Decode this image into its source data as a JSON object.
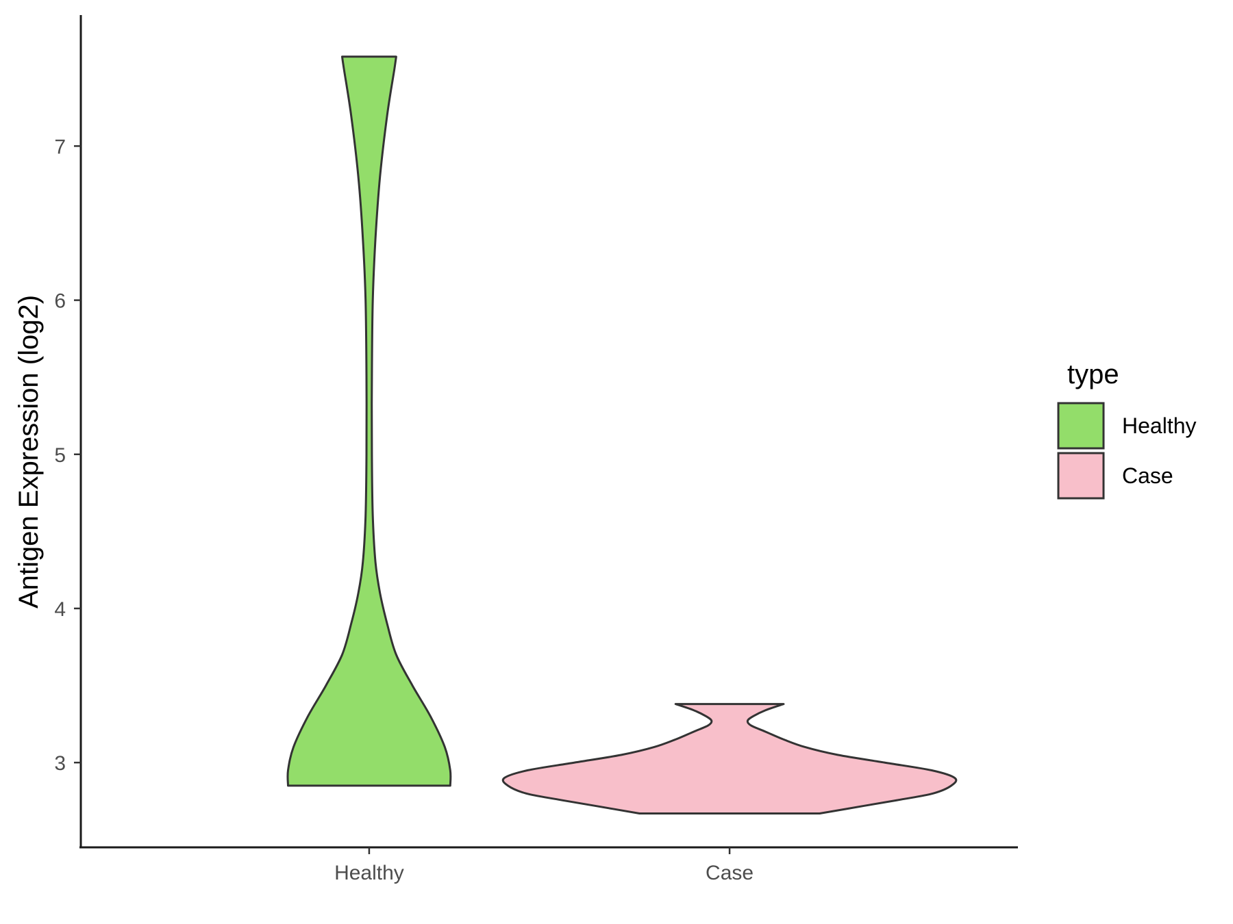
{
  "chart_data": {
    "type": "violin",
    "ylabel": "Antigen Expression (log2)",
    "xlabel": "",
    "ylim": [
      2.45,
      7.85
    ],
    "y_ticks": [
      3,
      4,
      5,
      6,
      7
    ],
    "categories": [
      "Healthy",
      "Case"
    ],
    "legend": {
      "title": "type",
      "position": "right",
      "entries": [
        {
          "label": "Healthy",
          "color": "#93dd6a"
        },
        {
          "label": "Case",
          "color": "#f8bfca"
        }
      ]
    },
    "series": [
      {
        "name": "Healthy",
        "color": "#93dd6a",
        "min": 2.85,
        "max": 7.58,
        "profile": [
          [
            2.85,
            0.45
          ],
          [
            2.95,
            0.45
          ],
          [
            3.1,
            0.42
          ],
          [
            3.3,
            0.34
          ],
          [
            3.5,
            0.24
          ],
          [
            3.7,
            0.15
          ],
          [
            3.9,
            0.1
          ],
          [
            4.1,
            0.06
          ],
          [
            4.3,
            0.035
          ],
          [
            4.6,
            0.02
          ],
          [
            5.0,
            0.015
          ],
          [
            5.5,
            0.015
          ],
          [
            6.0,
            0.02
          ],
          [
            6.4,
            0.035
          ],
          [
            6.8,
            0.06
          ],
          [
            7.2,
            0.1
          ],
          [
            7.5,
            0.14
          ],
          [
            7.58,
            0.15
          ]
        ]
      },
      {
        "name": "Case",
        "color": "#f8bfca",
        "min": 2.67,
        "max": 3.38,
        "profile": [
          [
            2.67,
            0.5
          ],
          [
            2.72,
            0.75
          ],
          [
            2.76,
            0.95
          ],
          [
            2.8,
            1.13
          ],
          [
            2.85,
            1.23
          ],
          [
            2.9,
            1.25
          ],
          [
            2.95,
            1.12
          ],
          [
            3.0,
            0.86
          ],
          [
            3.05,
            0.6
          ],
          [
            3.1,
            0.42
          ],
          [
            3.15,
            0.3
          ],
          [
            3.2,
            0.2
          ],
          [
            3.24,
            0.12
          ],
          [
            3.27,
            0.1
          ],
          [
            3.3,
            0.13
          ],
          [
            3.34,
            0.2
          ],
          [
            3.38,
            0.3
          ]
        ]
      }
    ]
  }
}
